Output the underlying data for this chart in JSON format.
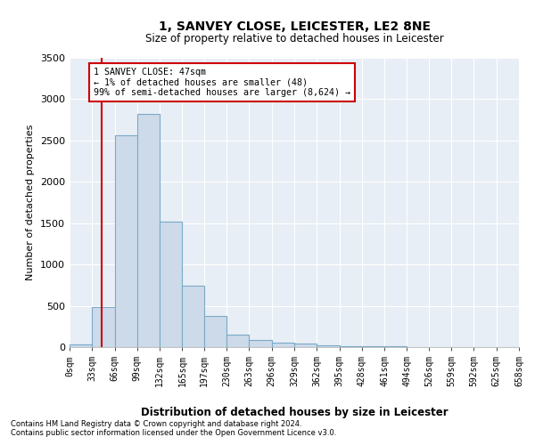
{
  "title": "1, SANVEY CLOSE, LEICESTER, LE2 8NE",
  "subtitle": "Size of property relative to detached houses in Leicester",
  "xlabel": "Distribution of detached houses by size in Leicester",
  "ylabel": "Number of detached properties",
  "bar_color": "#cddaea",
  "bar_edge_color": "#7aaac8",
  "background_color": "#e8eef5",
  "vline_x": 47,
  "vline_color": "#cc0000",
  "annotation_text": "1 SANVEY CLOSE: 47sqm\n← 1% of detached houses are smaller (48)\n99% of semi-detached houses are larger (8,624) →",
  "footnote1": "Contains HM Land Registry data © Crown copyright and database right 2024.",
  "footnote2": "Contains public sector information licensed under the Open Government Licence v3.0.",
  "bins": [
    0,
    33,
    66,
    99,
    132,
    165,
    197,
    230,
    263,
    296,
    329,
    362,
    395,
    428,
    461,
    494,
    526,
    559,
    592,
    625,
    658
  ],
  "bin_labels": [
    "0sqm",
    "33sqm",
    "66sqm",
    "99sqm",
    "132sqm",
    "165sqm",
    "197sqm",
    "230sqm",
    "263sqm",
    "296sqm",
    "329sqm",
    "362sqm",
    "395sqm",
    "428sqm",
    "461sqm",
    "494sqm",
    "526sqm",
    "559sqm",
    "592sqm",
    "625sqm",
    "658sqm"
  ],
  "values": [
    30,
    480,
    2560,
    2820,
    1520,
    740,
    380,
    150,
    90,
    55,
    40,
    25,
    12,
    8,
    6,
    4,
    3,
    2,
    1,
    1
  ],
  "ylim": [
    0,
    3500
  ],
  "yticks": [
    0,
    500,
    1000,
    1500,
    2000,
    2500,
    3000,
    3500
  ]
}
